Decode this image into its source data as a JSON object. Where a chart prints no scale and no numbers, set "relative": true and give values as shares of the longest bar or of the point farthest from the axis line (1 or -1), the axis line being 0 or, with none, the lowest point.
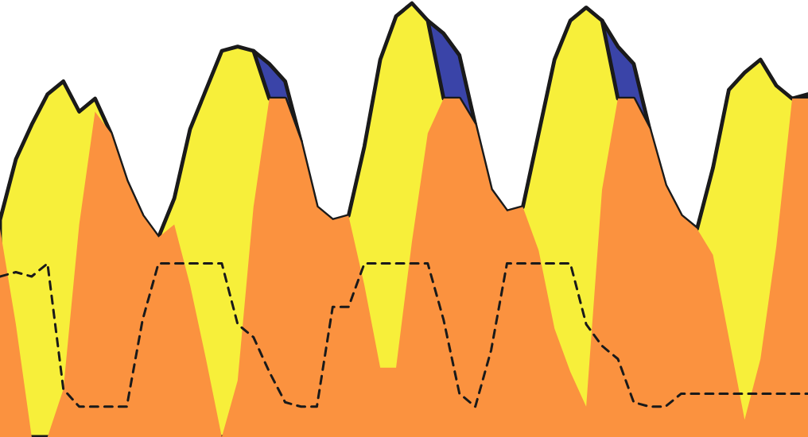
{
  "chart_data": {
    "type": "area",
    "relative": true,
    "categories": [
      null,
      null,
      null,
      null,
      null,
      null,
      null,
      null,
      null,
      null,
      null,
      null,
      null,
      null,
      null,
      null,
      null,
      null,
      null,
      null,
      null,
      null,
      null,
      null,
      null,
      null,
      null,
      null,
      null,
      null,
      null,
      null,
      null,
      null,
      null,
      null,
      null,
      null,
      null,
      null,
      null,
      null,
      null,
      null,
      null,
      null,
      null,
      null,
      null,
      null,
      null,
      null
    ],
    "series": [
      {
        "color": "#3a44a8",
        "values": [
          null,
          null,
          null,
          null,
          null,
          null,
          null,
          null,
          null,
          null,
          null,
          null,
          null,
          null,
          null,
          null,
          0.89,
          0.86,
          0.82,
          0.68,
          null,
          null,
          null,
          null,
          null,
          null,
          null,
          0.96,
          0.93,
          0.88,
          0.72,
          null,
          null,
          null,
          null,
          null,
          null,
          null,
          0.96,
          0.9,
          0.86,
          0.71,
          null,
          null,
          null,
          null,
          null,
          null,
          null,
          null,
          0.78,
          0.79
        ]
      },
      {
        "color": "#f7ef3a",
        "values": [
          0.5,
          0.64,
          0.72,
          0.79,
          0.82,
          0.75,
          0.78,
          0.7,
          0.59,
          0.51,
          0.46,
          0.55,
          0.71,
          0.8,
          0.89,
          0.9,
          0.89,
          0.78,
          0.78,
          0.68,
          0.53,
          0.5,
          0.51,
          0.67,
          0.87,
          0.97,
          1.0,
          0.96,
          0.78,
          0.78,
          0.72,
          0.57,
          0.52,
          0.53,
          0.7,
          0.87,
          0.96,
          0.99,
          0.96,
          0.78,
          0.78,
          0.71,
          0.58,
          0.51,
          0.48,
          0.62,
          0.8,
          0.84,
          0.87,
          0.81,
          0.78,
          0.78
        ]
      },
      {
        "color": "#fb923f",
        "values": [
          0.48,
          0.26,
          0,
          0,
          0.11,
          0.49,
          0.75,
          0.7,
          0.59,
          0.51,
          0.46,
          0.49,
          0.35,
          0.18,
          0,
          0.13,
          0.53,
          0.78,
          0.78,
          0.68,
          0.53,
          0.5,
          0.51,
          0.35,
          0.16,
          0.16,
          0.45,
          0.7,
          0.78,
          0.78,
          0.72,
          0.57,
          0.52,
          0.53,
          0.43,
          0.25,
          0.15,
          0.07,
          0.57,
          0.78,
          0.78,
          0.71,
          0.58,
          0.51,
          0.48,
          0.42,
          0.23,
          0.04,
          0.18,
          0.44,
          0.78,
          0.78
        ]
      },
      {
        "type": "line",
        "color": "#1a1a1a",
        "line_style": "dashed",
        "values": [
          0.37,
          0.38,
          0.37,
          0.4,
          0.11,
          0.07,
          0.07,
          0.07,
          0.07,
          0.27,
          0.4,
          0.4,
          0.4,
          0.4,
          0.4,
          0.26,
          0.23,
          0.15,
          0.08,
          0.07,
          0.07,
          0.3,
          0.3,
          0.4,
          0.4,
          0.4,
          0.4,
          0.4,
          0.27,
          0.1,
          0.07,
          0.2,
          0.4,
          0.4,
          0.4,
          0.4,
          0.4,
          0.26,
          0.21,
          0.18,
          0.08,
          0.07,
          0.07,
          0.1,
          0.1,
          0.1,
          0.1,
          0.1,
          0.1,
          0.1,
          0.1,
          0.1
        ]
      }
    ]
  }
}
